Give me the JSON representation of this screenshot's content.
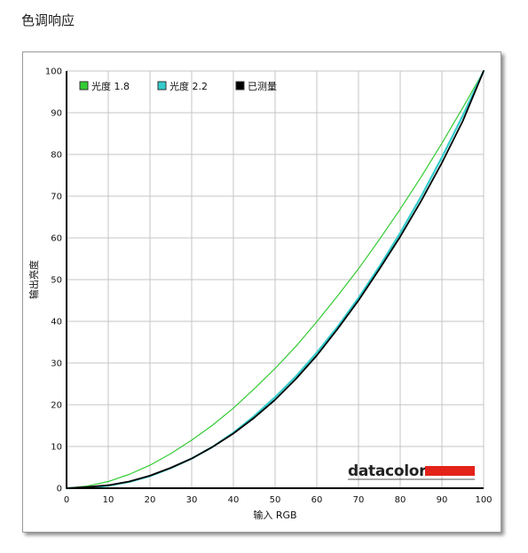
{
  "page": {
    "title": "色调响应"
  },
  "chart_data": {
    "type": "line",
    "title": "",
    "xlabel": "输入 RGB",
    "ylabel": "输出亮度",
    "xlim": [
      0,
      100
    ],
    "ylim": [
      0,
      100
    ],
    "xticks": [
      "0",
      "10",
      "20",
      "30",
      "40",
      "50",
      "60",
      "70",
      "80",
      "90",
      "100"
    ],
    "yticks": [
      "0",
      "10",
      "20",
      "30",
      "40",
      "50",
      "60",
      "70",
      "80",
      "90",
      "100"
    ],
    "grid": true,
    "legend_position": "top-left",
    "series": [
      {
        "name": "光度 1.8",
        "color": "#33cc33",
        "x": [
          0,
          5,
          10,
          15,
          20,
          25,
          30,
          35,
          40,
          45,
          50,
          55,
          60,
          65,
          70,
          75,
          80,
          85,
          90,
          95,
          100
        ],
        "y": [
          0,
          0.5,
          1.6,
          3.3,
          5.5,
          8.3,
          11.5,
          15.1,
          19.2,
          23.8,
          28.7,
          34.0,
          39.9,
          46.1,
          52.6,
          59.6,
          66.9,
          74.6,
          82.7,
          91.2,
          100
        ]
      },
      {
        "name": "光度 2.2",
        "color": "#33cccc",
        "x": [
          0,
          5,
          10,
          15,
          20,
          25,
          30,
          35,
          40,
          45,
          50,
          55,
          60,
          65,
          70,
          75,
          80,
          85,
          90,
          95,
          100
        ],
        "y": [
          0,
          0.1,
          0.6,
          1.5,
          2.9,
          4.8,
          7.1,
          9.9,
          13.3,
          17.3,
          21.8,
          26.8,
          32.5,
          38.7,
          45.6,
          53.1,
          61.2,
          69.9,
          79.3,
          89.3,
          100
        ]
      },
      {
        "name": "已测量",
        "color": "#000000",
        "x": [
          0,
          5,
          10,
          15,
          20,
          25,
          30,
          35,
          40,
          45,
          50,
          55,
          60,
          65,
          70,
          75,
          80,
          85,
          90,
          95,
          100
        ],
        "y": [
          0,
          0.3,
          0.7,
          1.6,
          3.0,
          4.9,
          7.1,
          9.9,
          13.1,
          16.9,
          21.2,
          26.2,
          31.8,
          38.2,
          45.0,
          52.5,
          60.3,
          68.8,
          78.0,
          88.0,
          100
        ]
      }
    ]
  },
  "logo": {
    "text": "datacolor",
    "bar_color": "#e32219"
  }
}
